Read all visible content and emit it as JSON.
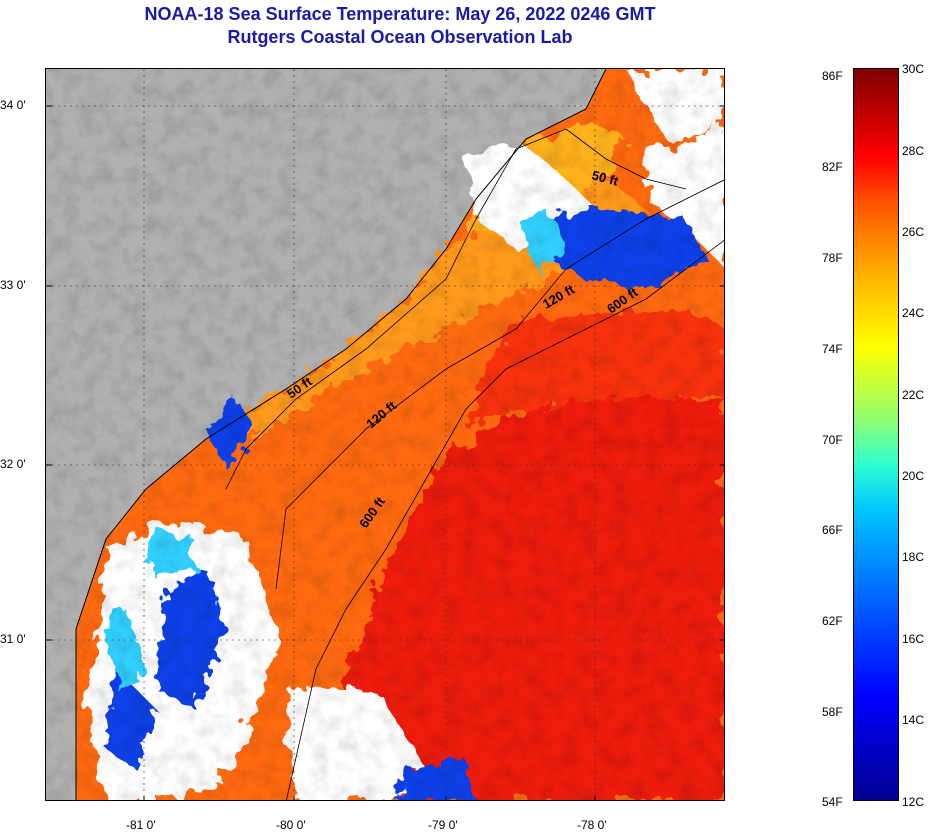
{
  "header": {
    "title": "NOAA-18 Sea Surface Temperature:  May 26, 2022 0246 GMT",
    "subtitle": "Rutgers Coastal Ocean Observation Lab"
  },
  "map": {
    "lat_labels": [
      "34 0'",
      "33 0'",
      "32 0'",
      "31 0'"
    ],
    "lon_labels": [
      "-81 0'",
      "-80 0'",
      "-79 0'",
      "-78 0'"
    ],
    "isobath_labels": [
      {
        "text": "50 ft"
      },
      {
        "text": "50 ft"
      },
      {
        "text": "120 ft"
      },
      {
        "text": "120 ft"
      },
      {
        "text": "600 ft"
      },
      {
        "text": "600 ft"
      }
    ],
    "colors": {
      "land": "#b0b0b0",
      "cloud": "#ffffff",
      "coast": "#000000",
      "grid": "#333333"
    }
  },
  "colorbar": {
    "fahrenheit_labels": [
      "86F",
      "82F",
      "78F",
      "74F",
      "70F",
      "66F",
      "62F",
      "58F",
      "54F"
    ],
    "celsius_labels": [
      "30C",
      "28C",
      "26C",
      "24C",
      "22C",
      "20C",
      "18C",
      "16C",
      "14C",
      "12C"
    ],
    "range_f": [
      54,
      86
    ],
    "range_c": [
      12,
      30
    ],
    "colors": [
      "#00008f",
      "#0000ff",
      "#0060ff",
      "#00c8ff",
      "#30ffcf",
      "#8fff70",
      "#ffff00",
      "#ffb000",
      "#ff5000",
      "#ff0000",
      "#7f0000"
    ]
  }
}
